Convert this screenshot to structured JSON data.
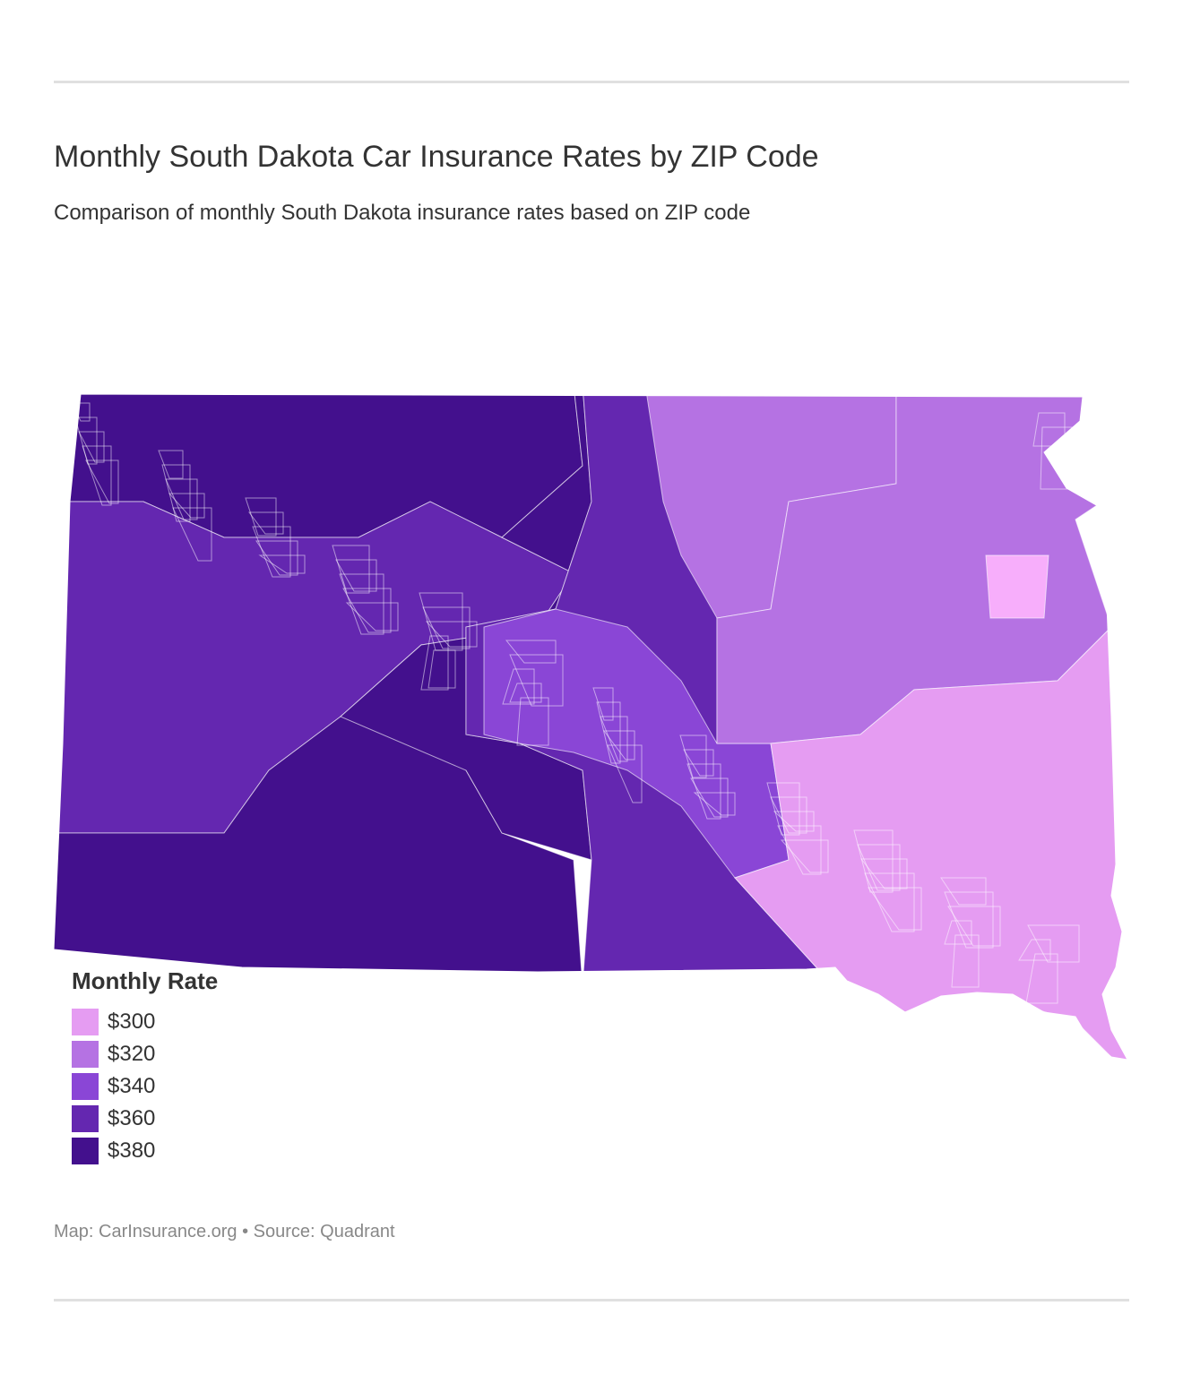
{
  "title": "Monthly South Dakota Car Insurance Rates by ZIP Code",
  "subtitle": "Comparison of monthly South Dakota insurance rates based on ZIP code",
  "legend": {
    "title": "Monthly Rate",
    "items": [
      {
        "label": "$300",
        "value": 300,
        "color": "#e59cf2"
      },
      {
        "label": "$320",
        "value": 320,
        "color": "#b572e3"
      },
      {
        "label": "$340",
        "value": 340,
        "color": "#8a46d6"
      },
      {
        "label": "$360",
        "value": 360,
        "color": "#6427b0"
      },
      {
        "label": "$380",
        "value": 380,
        "color": "#43108d"
      }
    ]
  },
  "chart_data": {
    "type": "choropleth",
    "region": "South Dakota",
    "unit": "ZIP code",
    "metric": "Monthly Rate (USD)",
    "bins": [
      300,
      320,
      340,
      360,
      380
    ],
    "approx_regions": [
      {
        "area": "northwest",
        "value": 380
      },
      {
        "area": "west-central",
        "value": 360
      },
      {
        "area": "southwest",
        "value": 380
      },
      {
        "area": "central-west",
        "value": 380
      },
      {
        "area": "central",
        "value": 360
      },
      {
        "area": "central-east",
        "value": 340
      },
      {
        "area": "north-central-east",
        "value": 320
      },
      {
        "area": "east",
        "value": 320
      },
      {
        "area": "southeast",
        "value": 300
      },
      {
        "area": "far-east",
        "value": 300
      }
    ]
  },
  "footer": "Map: CarInsurance.org • Source: Quadrant"
}
